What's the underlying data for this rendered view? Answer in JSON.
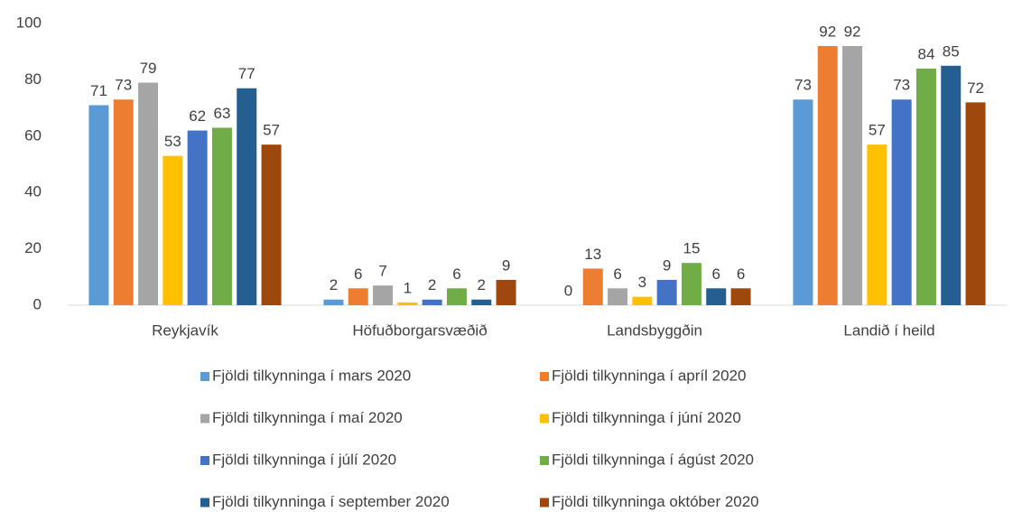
{
  "chart_data": {
    "type": "bar",
    "categories": [
      "Reykjavík",
      "Höfuðborgarsvæðið",
      "Landsbyggðin",
      "Landið í heild"
    ],
    "series": [
      {
        "name": "Fjöldi tilkynninga í mars 2020",
        "color": "#5b9bd5",
        "values": [
          71,
          2,
          0,
          73
        ]
      },
      {
        "name": "Fjöldi tilkynninga í apríl 2020",
        "color": "#ed7d31",
        "values": [
          73,
          6,
          13,
          92
        ]
      },
      {
        "name": "Fjöldi tilkynninga í maí 2020",
        "color": "#a5a5a5",
        "values": [
          79,
          7,
          6,
          92
        ]
      },
      {
        "name": "Fjöldi tilkynninga í júní 2020",
        "color": "#ffc000",
        "values": [
          53,
          1,
          3,
          57
        ]
      },
      {
        "name": "Fjöldi tilkynninga í júlí 2020",
        "color": "#4472c4",
        "values": [
          62,
          2,
          9,
          73
        ]
      },
      {
        "name": "Fjöldi tilkynninga í ágúst 2020",
        "color": "#70ad47",
        "values": [
          63,
          6,
          15,
          84
        ]
      },
      {
        "name": "Fjöldi tilkynninga í september 2020",
        "color": "#255e91",
        "values": [
          77,
          2,
          6,
          85
        ]
      },
      {
        "name": "Fjöldi tilkynninga október 2020",
        "color": "#9e480e",
        "values": [
          57,
          9,
          6,
          72
        ]
      }
    ],
    "ylim": [
      0,
      100
    ],
    "yticks": [
      0,
      20,
      40,
      60,
      80,
      100
    ],
    "grid": false,
    "legend": "bottom"
  }
}
